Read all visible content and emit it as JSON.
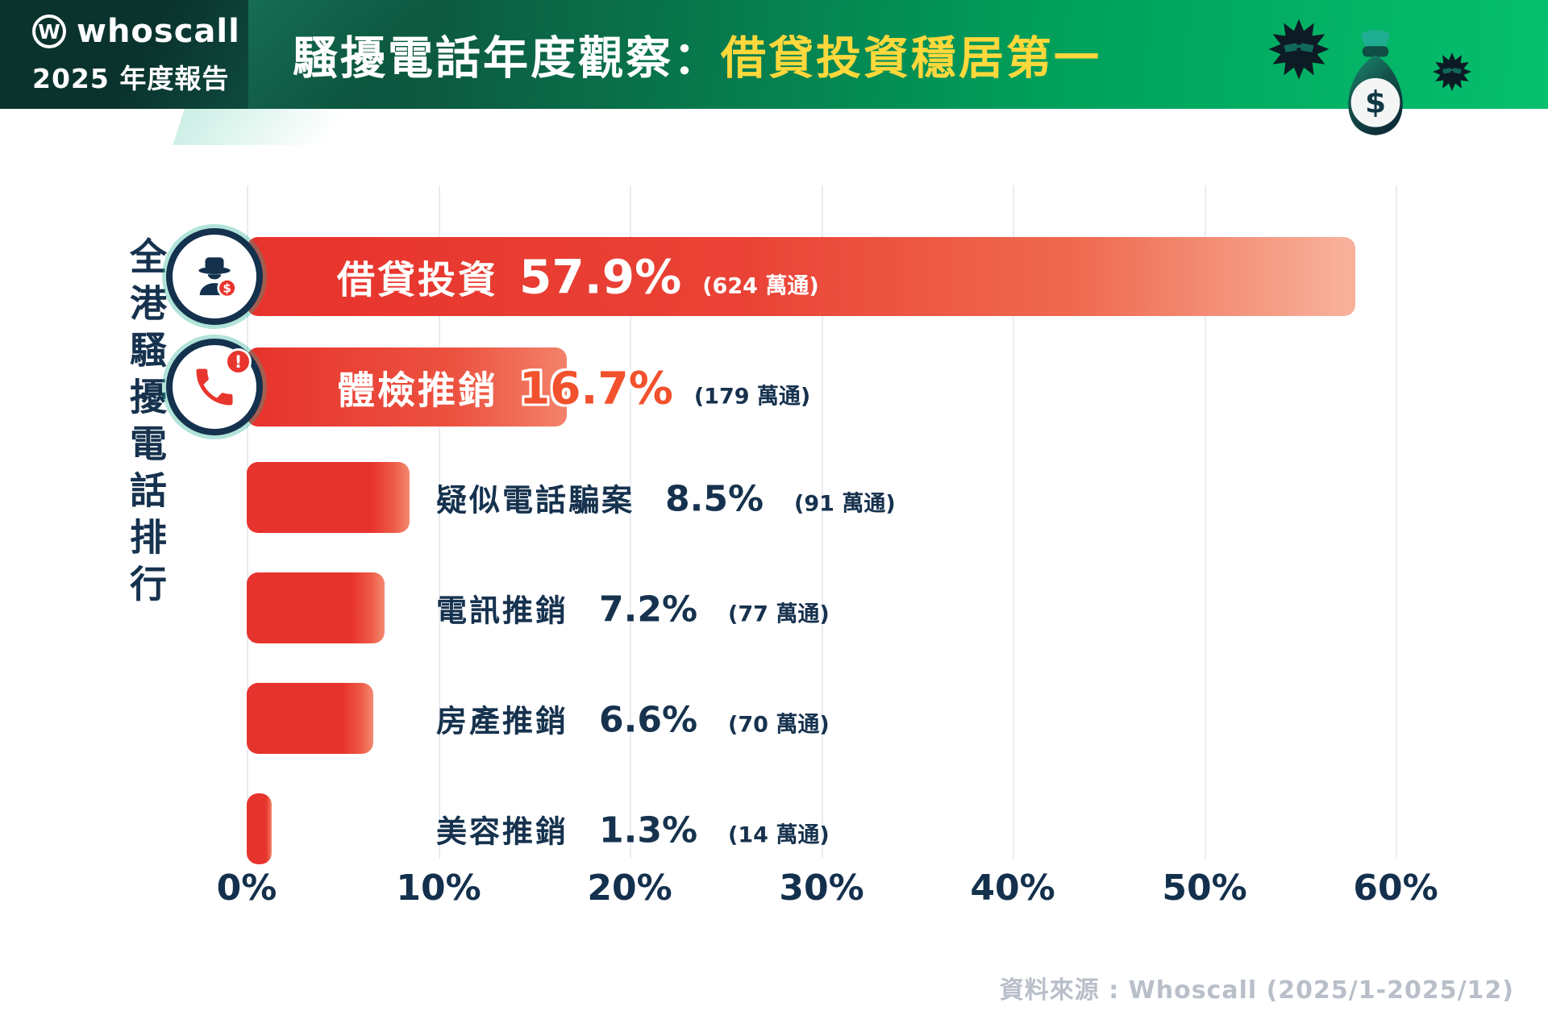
{
  "header": {
    "logo_mark": "W",
    "logo_text": "whoscall",
    "report_label": "2025 年度報告",
    "title_plain": "騷擾電話年度觀察：",
    "title_highlight": "借貸投資穩居第一",
    "title_highlight_color": "#ffd83b"
  },
  "icons": {
    "money_bag_dollar": "$",
    "spy_badge_dollar": "$",
    "phone_badge_alert": "!"
  },
  "chart": {
    "y_axis_label": "全港騷擾電話排行",
    "source": "資料來源 : Whoscall (2025/1-2025/12)"
  },
  "chart_data": {
    "type": "bar",
    "orientation": "horizontal",
    "title": "騷擾電話年度觀察：借貸投資穩居第一",
    "ylabel": "全港騷擾電話排行",
    "categories": [
      "借貸投資",
      "體檢推銷",
      "疑似電話騙案",
      "電訊推銷",
      "房產推銷",
      "美容推銷"
    ],
    "values": [
      57.9,
      16.7,
      8.5,
      7.2,
      6.6,
      1.3
    ],
    "value_labels": [
      "57.9%",
      "16.7%",
      "8.5%",
      "7.2%",
      "6.6%",
      "1.3%"
    ],
    "count_labels": [
      "(624 萬通)",
      "(179 萬通)",
      "(91 萬通)",
      "(77 萬通)",
      "(70 萬通)",
      "(14 萬通)"
    ],
    "x_ticks": [
      "0%",
      "10%",
      "20%",
      "30%",
      "40%",
      "50%",
      "60%"
    ],
    "xlim": [
      0,
      60
    ],
    "bar_color": "#e8352e",
    "grid": "vertical",
    "legend": "none",
    "row_icons": [
      "scammer-spy-icon",
      "spam-phone-icon"
    ]
  }
}
